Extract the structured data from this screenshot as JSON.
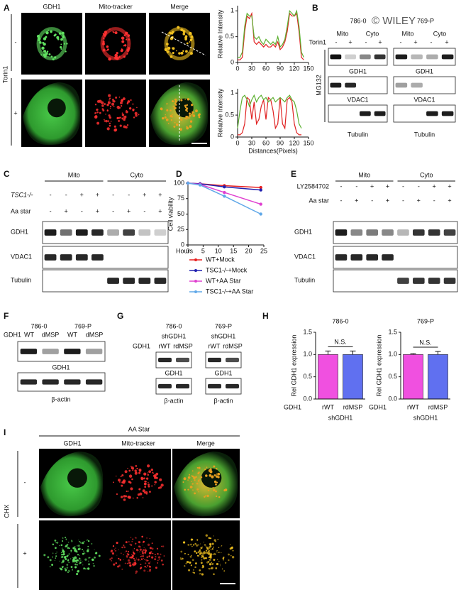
{
  "panel_labels": [
    "A",
    "B",
    "C",
    "D",
    "E",
    "F",
    "G",
    "H",
    "I"
  ],
  "panel_a": {
    "headers": [
      "GDH1",
      "Mito-tracker",
      "Merge"
    ],
    "condition": "Torin1",
    "rows": [
      "-",
      "+"
    ]
  },
  "panel_b": {
    "lines": [
      "786-0",
      "769-P"
    ],
    "watermark": "© WILEY",
    "fractions": [
      "Mito",
      "Cyto",
      "Mito",
      "Cyto"
    ],
    "treatment": "Torin1",
    "signs": [
      "-",
      "+",
      "-",
      "+",
      "-",
      "+",
      "-",
      "+"
    ],
    "side_label": "MG132",
    "blot_labels": [
      [
        "GDH1",
        "VDAC1",
        "Tubulin"
      ],
      [
        "GDH1",
        "VDAC1",
        "Tubulin"
      ]
    ]
  },
  "panel_c": {
    "groups": [
      "Mito",
      "Cyto"
    ],
    "rows": [
      {
        "label": "TSC1-/-",
        "signs": [
          "-",
          "-",
          "+",
          "+",
          "-",
          "-",
          "+",
          "+"
        ]
      },
      {
        "label": "Aa star",
        "signs": [
          "-",
          "+",
          "-",
          "+",
          "-",
          "+",
          "-",
          "+"
        ]
      }
    ],
    "blots": [
      "GDH1",
      "VDAC1",
      "Tubulin"
    ]
  },
  "panel_e": {
    "groups": [
      "Mito",
      "Cyto"
    ],
    "rows": [
      {
        "label": "LY2584702",
        "signs": [
          "-",
          "-",
          "+",
          "+",
          "-",
          "-",
          "+",
          "+"
        ]
      },
      {
        "label": "Aa star",
        "signs": [
          "-",
          "+",
          "-",
          "+",
          "-",
          "+",
          "-",
          "+"
        ]
      }
    ],
    "blots": [
      "GDH1",
      "VDAC1",
      "Tubulin"
    ]
  },
  "panel_f": {
    "lines": [
      "786-0",
      "769-P"
    ],
    "row_label": "GDH1",
    "lanes": [
      "WT",
      "dMSP",
      "WT",
      "dMSP"
    ],
    "blots": [
      "GDH1",
      "β-actin"
    ]
  },
  "panel_g": {
    "lines": [
      "786-0",
      "769-P"
    ],
    "knockdown": [
      "shGDH1",
      "shGDH1"
    ],
    "row_label": "GDH1",
    "lanes": [
      [
        "rWT",
        "rdMSP"
      ],
      [
        "rWT",
        "rdMSP"
      ]
    ],
    "blots": [
      [
        "GDH1",
        "β-actin"
      ],
      [
        "GDH1",
        "β-actin"
      ]
    ]
  },
  "panel_i": {
    "treatment": "AA Star",
    "headers": [
      "GDH1",
      "Mito-tracker",
      "Merge"
    ],
    "condition": "CHX",
    "rows": [
      "-",
      "+"
    ]
  },
  "chart_data": [
    {
      "type": "line",
      "ylabel": "Relative Intensity",
      "x": [
        0,
        5,
        10,
        15,
        20,
        25,
        30,
        35,
        40,
        45,
        50,
        55,
        60,
        65,
        70,
        75,
        80,
        85,
        90,
        95,
        100,
        105,
        110,
        115,
        120,
        125,
        130,
        135,
        140
      ],
      "series": [
        {
          "name": "Mito-tracker",
          "color": "#e02020",
          "values": [
            0.05,
            0.05,
            0.1,
            0.6,
            0.9,
            0.85,
            0.95,
            0.4,
            0.35,
            0.4,
            0.35,
            0.3,
            0.35,
            0.3,
            0.3,
            0.35,
            0.3,
            0.4,
            0.25,
            0.3,
            0.4,
            0.6,
            0.95,
            0.9,
            0.9,
            0.95,
            0.6,
            0.1,
            0.05
          ]
        },
        {
          "name": "GDH1",
          "color": "#5cb030",
          "values": [
            0.1,
            0.1,
            0.2,
            0.7,
            0.95,
            0.9,
            0.9,
            0.5,
            0.45,
            0.5,
            0.4,
            0.35,
            0.45,
            0.4,
            0.35,
            0.4,
            0.35,
            0.5,
            0.3,
            0.35,
            0.45,
            0.7,
            1.0,
            0.95,
            0.9,
            1.0,
            0.7,
            0.2,
            0.1
          ]
        }
      ],
      "xlim": [
        0,
        150
      ],
      "xticks": [
        0,
        30,
        60,
        90,
        120,
        150
      ],
      "ylim": [
        0,
        1.1
      ],
      "yticks": [
        0,
        0.5,
        1
      ]
    },
    {
      "type": "line",
      "ylabel": "Relative Intensity",
      "xlabel": "Distances(Pixels)",
      "x": [
        0,
        5,
        10,
        15,
        20,
        25,
        30,
        35,
        40,
        45,
        50,
        55,
        60,
        65,
        70,
        75,
        80,
        85,
        90,
        95,
        100,
        105,
        110,
        115,
        120,
        125,
        130,
        135
      ],
      "series": [
        {
          "name": "Mito-tracker",
          "color": "#e02020",
          "values": [
            0.05,
            0.05,
            0.1,
            0.3,
            0.9,
            0.85,
            0.4,
            0.8,
            0.3,
            0.4,
            0.7,
            0.85,
            0.4,
            0.9,
            0.85,
            0.6,
            0.2,
            0.3,
            0.9,
            0.3,
            0.2,
            0.85,
            0.9,
            0.8,
            0.3,
            0.1,
            0.05,
            0.05
          ]
        },
        {
          "name": "GDH1",
          "color": "#5cb030",
          "values": [
            0.2,
            0.6,
            0.9,
            0.95,
            0.85,
            0.7,
            0.85,
            0.95,
            0.8,
            0.9,
            0.95,
            0.85,
            0.9,
            0.8,
            0.85,
            0.9,
            0.8,
            0.85,
            0.9,
            0.85,
            0.8,
            0.9,
            0.95,
            0.85,
            0.8,
            0.6,
            0.3,
            0.2
          ]
        }
      ],
      "xlim": [
        0,
        150
      ],
      "xticks": [
        0,
        30,
        60,
        90,
        120,
        150
      ],
      "ylim": [
        0,
        1.1
      ],
      "yticks": [
        0,
        0.5,
        1
      ]
    },
    {
      "type": "line",
      "ylabel": "Cell viability",
      "xlabel": "Hours",
      "markers": true,
      "legend": "bottom",
      "x": [
        0,
        4,
        12,
        24
      ],
      "series": [
        {
          "name": "WT+Mock",
          "color": "#e82020",
          "values": [
            100,
            99,
            96,
            93
          ]
        },
        {
          "name": "TSC1-/-+Mock",
          "color": "#2020b0",
          "values": [
            100,
            99,
            94,
            89
          ]
        },
        {
          "name": "WT+AA Star",
          "color": "#e040d0",
          "values": [
            100,
            98,
            85,
            66
          ]
        },
        {
          "name": "TSC1-/-+AA Star",
          "color": "#60a8e8",
          "values": [
            100,
            97,
            79,
            50
          ]
        }
      ],
      "xlim": [
        0,
        25
      ],
      "xticks": [
        0,
        5,
        10,
        15,
        20,
        25
      ],
      "ylim": [
        0,
        100
      ],
      "yticks": [
        0,
        25,
        50,
        75,
        100
      ]
    },
    {
      "type": "bar",
      "title": "786-0",
      "ylabel": "Rel GDH1 expression",
      "row_label": "GDH1",
      "group_label": "shGDH1",
      "annotation": "N.S.",
      "categories": [
        "rWT",
        "rdMSP"
      ],
      "values": [
        1.0,
        1.0
      ],
      "errors": [
        0.08,
        0.08
      ],
      "colors": [
        "#f050e0",
        "#6070f0"
      ],
      "ylim": [
        0,
        1.5
      ],
      "yticks": [
        {
          "value": 0,
          "label": "0.0"
        },
        {
          "value": 0.5,
          "label": "0.5"
        },
        {
          "value": 1,
          "label": "1.0"
        },
        {
          "value": 1.5,
          "label": "1.5"
        }
      ]
    },
    {
      "type": "bar",
      "title": "769-P",
      "ylabel": "Rel GDH1 expression",
      "row_label": "GDH1",
      "group_label": "shGDH1",
      "annotation": "N.S.",
      "categories": [
        "rWT",
        "rdMSP"
      ],
      "values": [
        1.0,
        1.0
      ],
      "errors": [
        0.02,
        0.07
      ],
      "colors": [
        "#f050e0",
        "#6070f0"
      ],
      "ylim": [
        0,
        1.5
      ],
      "yticks": [
        {
          "value": 0,
          "label": "0.0"
        },
        {
          "value": 0.5,
          "label": "0.5"
        },
        {
          "value": 1,
          "label": "1.0"
        },
        {
          "value": 1.5,
          "label": "1.5"
        }
      ]
    }
  ]
}
